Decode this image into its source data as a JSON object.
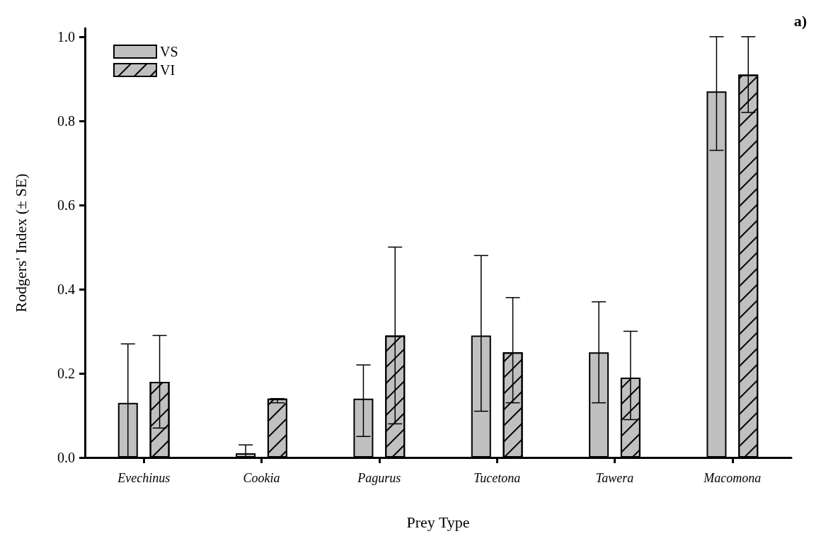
{
  "chart_data": {
    "type": "bar",
    "xlabel": "Prey Type",
    "ylabel": "Rodgers' Index (± SE)",
    "categories": [
      "Evechinus",
      "Cookia",
      "Pagurus",
      "Tucetona",
      "Tawera",
      "Macomona"
    ],
    "series": [
      {
        "name": "VS",
        "color": "#c0c0c0",
        "values": [
          0.13,
          0.01,
          0.14,
          0.29,
          0.25,
          0.87
        ],
        "errors": [
          [
            0,
            0.27
          ],
          [
            0.0,
            0.03
          ],
          [
            0.05,
            0.22
          ],
          [
            0.11,
            0.48
          ],
          [
            0.13,
            0.37
          ],
          [
            0.73,
            1.0
          ]
        ]
      },
      {
        "name": "VI",
        "color": "#c0c0c0",
        "values": [
          0.18,
          0.14,
          0.29,
          0.25,
          0.19,
          0.91
        ],
        "errors": [
          [
            0.07,
            0.29
          ],
          [
            0.13,
            0.14
          ],
          [
            0.08,
            0.5
          ],
          [
            0.13,
            0.38
          ],
          [
            0.09,
            0.3
          ],
          [
            0.82,
            1.0
          ]
        ]
      }
    ],
    "ylim": [
      0,
      1.02
    ],
    "yticks": [
      {
        "value": 0,
        "label": "0.0"
      },
      0.2,
      0.4,
      0.6,
      0.8,
      {
        "value": 1,
        "label": "1.0"
      }
    ],
    "grid": false,
    "legend": "top left",
    "annotations": [
      "a)"
    ]
  }
}
